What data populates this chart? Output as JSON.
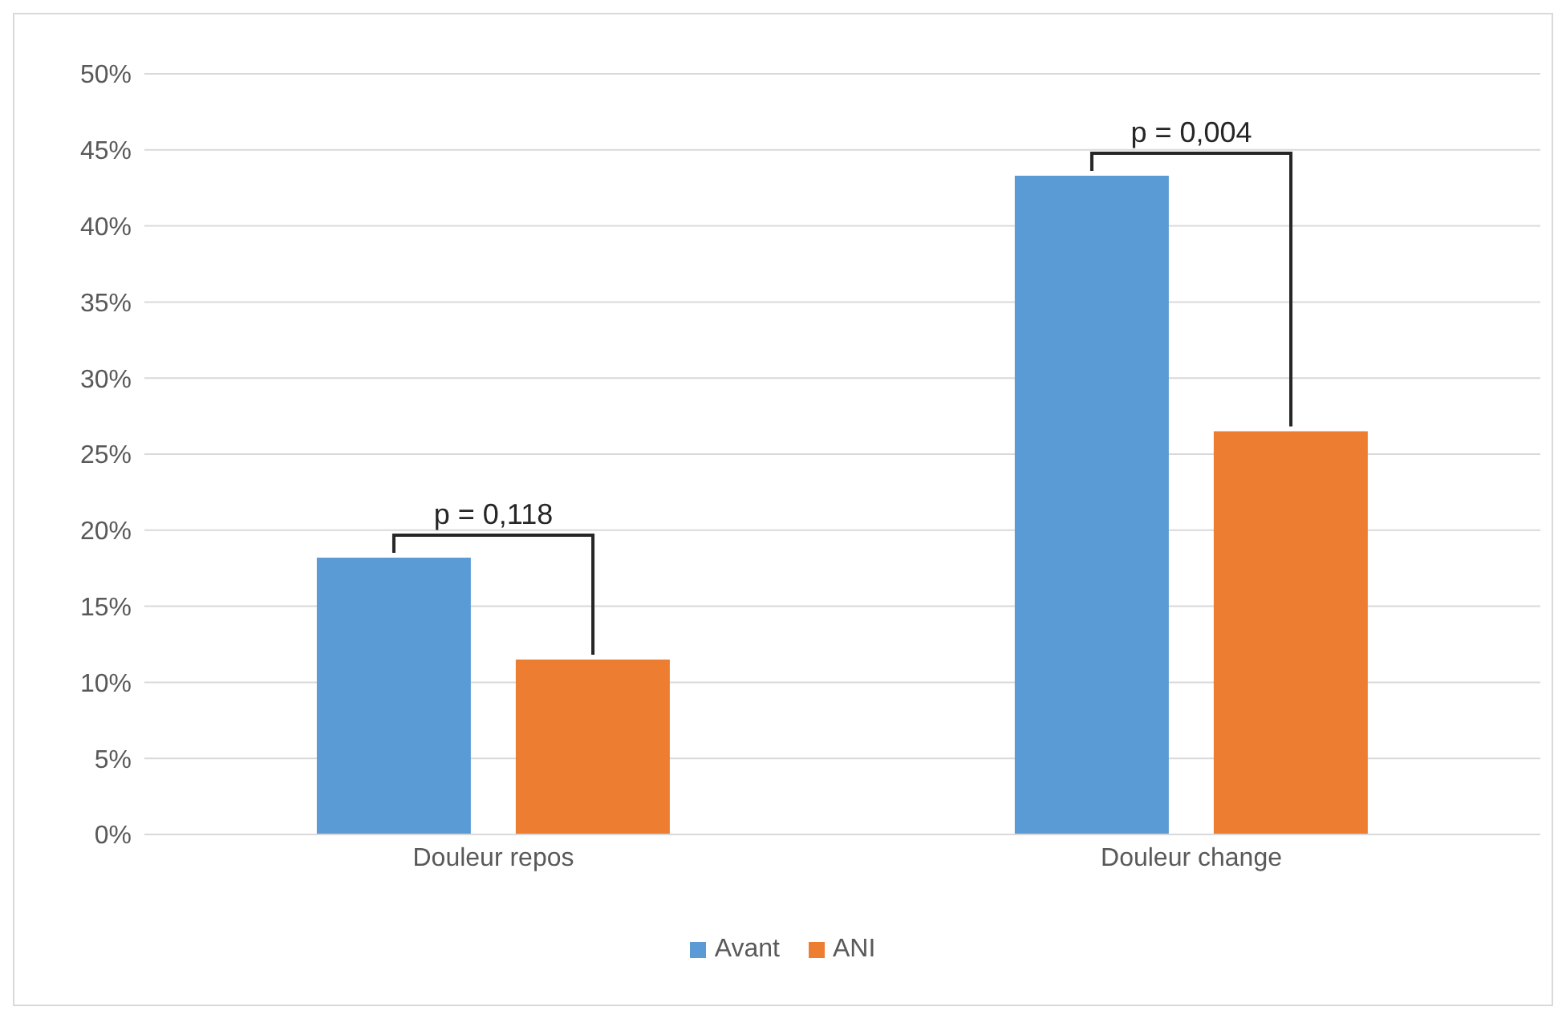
{
  "chart_data": {
    "type": "bar",
    "categories": [
      "Douleur repos",
      "Douleur change"
    ],
    "series": [
      {
        "name": "Avant",
        "color": "#5b9bd5",
        "values": [
          18.2,
          43.3
        ]
      },
      {
        "name": "ANI",
        "color": "#ed7d31",
        "values": [
          11.5,
          26.5
        ]
      }
    ],
    "ylim": [
      0,
      50
    ],
    "yticks": [
      {
        "value": 0,
        "label": "0%"
      },
      {
        "value": 5,
        "label": "5%"
      },
      {
        "value": 10,
        "label": "10%"
      },
      {
        "value": 15,
        "label": "15%"
      },
      {
        "value": 20,
        "label": "20%"
      },
      {
        "value": 25,
        "label": "25%"
      },
      {
        "value": 30,
        "label": "30%"
      },
      {
        "value": 35,
        "label": "35%"
      },
      {
        "value": 40,
        "label": "40%"
      },
      {
        "value": 45,
        "label": "45%"
      },
      {
        "value": 50,
        "label": "50%"
      }
    ],
    "grid": "y",
    "legend": "bottom",
    "annotations": [
      "p = 0,118",
      "p = 0,004"
    ]
  }
}
